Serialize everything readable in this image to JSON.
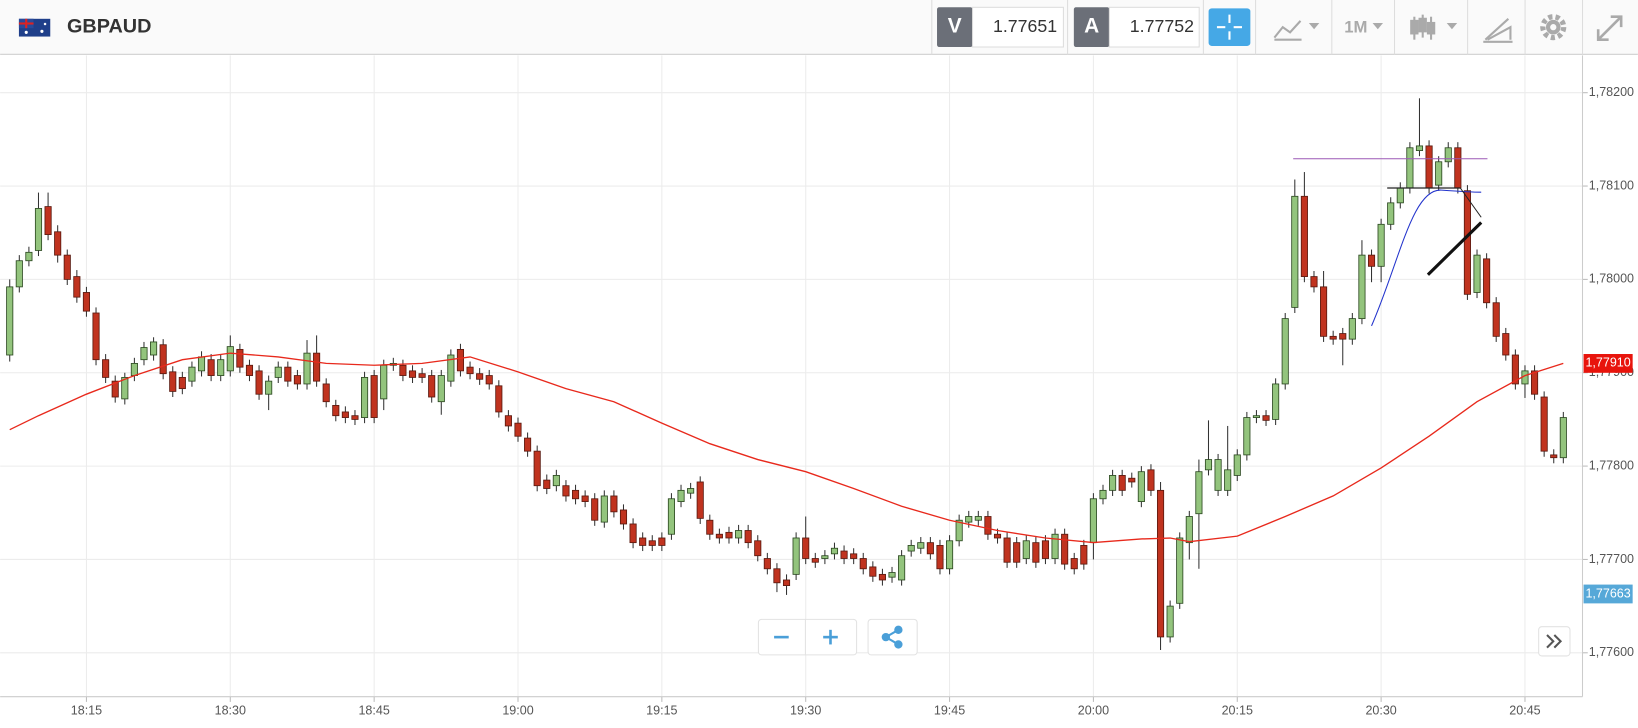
{
  "header": {
    "symbol": "GBPAUD",
    "sell": {
      "label": "V",
      "price": "1.77651"
    },
    "buy": {
      "label": "A",
      "price": "1.77752"
    },
    "timeframe": "1M"
  },
  "chart_data": {
    "type": "candlestick",
    "up_color": "#93c47d",
    "down_color": "#c0331f",
    "grid": true,
    "xlim": [
      "18:06",
      "20:51"
    ],
    "ylim": [
      1.77553,
      1.7824
    ],
    "xticks": [
      "18:15",
      "18:30",
      "18:45",
      "19:00",
      "19:15",
      "19:30",
      "19:45",
      "20:00",
      "20:15",
      "20:30",
      "20:45"
    ],
    "yticks": [
      {
        "value": 1.782,
        "label": "1,78200"
      },
      {
        "value": 1.781,
        "label": "1,78100"
      },
      {
        "value": 1.78,
        "label": "1,78000"
      },
      {
        "value": 1.779,
        "label": "1,77900"
      },
      {
        "value": 1.778,
        "label": "1,77800"
      },
      {
        "value": 1.777,
        "label": "1,77700"
      },
      {
        "value": 1.776,
        "label": "1,77600"
      }
    ],
    "price_labels": [
      {
        "value": 1.7791,
        "label": "1,77910",
        "color": "#e8140c"
      },
      {
        "value": 1.77663,
        "label": "1,77663",
        "color": "#56a8d8"
      }
    ],
    "x": [
      "18:07",
      "18:08",
      "18:09",
      "18:10",
      "18:11",
      "18:12",
      "18:13",
      "18:14",
      "18:15",
      "18:16",
      "18:17",
      "18:18",
      "18:19",
      "18:20",
      "18:21",
      "18:22",
      "18:23",
      "18:24",
      "18:25",
      "18:26",
      "18:27",
      "18:28",
      "18:29",
      "18:30",
      "18:31",
      "18:32",
      "18:33",
      "18:34",
      "18:35",
      "18:36",
      "18:37",
      "18:38",
      "18:39",
      "18:40",
      "18:41",
      "18:42",
      "18:43",
      "18:44",
      "18:45",
      "18:46",
      "18:47",
      "18:48",
      "18:49",
      "18:50",
      "18:51",
      "18:52",
      "18:53",
      "18:54",
      "18:55",
      "18:56",
      "18:57",
      "18:58",
      "18:59",
      "19:00",
      "19:01",
      "19:02",
      "19:03",
      "19:04",
      "19:05",
      "19:06",
      "19:07",
      "19:08",
      "19:09",
      "19:10",
      "19:11",
      "19:12",
      "19:13",
      "19:14",
      "19:15",
      "19:16",
      "19:17",
      "19:18",
      "19:19",
      "19:20",
      "19:21",
      "19:22",
      "19:23",
      "19:24",
      "19:25",
      "19:26",
      "19:27",
      "19:28",
      "19:29",
      "19:30",
      "19:31",
      "19:32",
      "19:33",
      "19:34",
      "19:35",
      "19:36",
      "19:37",
      "19:38",
      "19:39",
      "19:40",
      "19:41",
      "19:42",
      "19:43",
      "19:44",
      "19:45",
      "19:46",
      "19:47",
      "19:48",
      "19:49",
      "19:50",
      "19:51",
      "19:52",
      "19:53",
      "19:54",
      "19:55",
      "19:56",
      "19:57",
      "19:58",
      "19:59",
      "20:00",
      "20:01",
      "20:02",
      "20:03",
      "20:04",
      "20:05",
      "20:06",
      "20:07",
      "20:08",
      "20:09",
      "20:10",
      "20:11",
      "20:12",
      "20:13",
      "20:14",
      "20:15",
      "20:16",
      "20:17",
      "20:18",
      "20:19",
      "20:20",
      "20:21",
      "20:22",
      "20:23",
      "20:24",
      "20:25",
      "20:26",
      "20:27",
      "20:28",
      "20:29",
      "20:30",
      "20:31",
      "20:32",
      "20:33",
      "20:34",
      "20:35",
      "20:36",
      "20:37",
      "20:38",
      "20:39",
      "20:40",
      "20:41",
      "20:42",
      "20:43",
      "20:44",
      "20:45",
      "20:46",
      "20:47",
      "20:48",
      "20:49"
    ],
    "open": [
      1.77919,
      1.77992,
      1.7802,
      1.78031,
      1.78078,
      1.78051,
      1.78026,
      1.78003,
      1.77986,
      1.77964,
      1.77914,
      1.77891,
      1.77872,
      1.77897,
      1.77914,
      1.77919,
      1.7793,
      1.77901,
      1.77895,
      1.77891,
      1.77902,
      1.77914,
      1.77897,
      1.77902,
      1.77925,
      1.77908,
      1.77902,
      1.77877,
      1.77895,
      1.77906,
      1.77897,
      1.77888,
      1.77921,
      1.77888,
      1.77865,
      1.77858,
      1.77854,
      1.77852,
      1.77897,
      1.77872,
      1.77908,
      1.77908,
      1.77902,
      1.77899,
      1.77897,
      1.77869,
      1.77891,
      1.77925,
      1.77906,
      1.77899,
      1.77897,
      1.77886,
      1.77854,
      1.77846,
      1.7783,
      1.77816,
      1.77785,
      1.77779,
      1.77779,
      1.77774,
      1.77768,
      1.77765,
      1.7774,
      1.77768,
      1.77753,
      1.77738,
      1.77723,
      1.7772,
      1.77723,
      1.77727,
      1.77762,
      1.77771,
      1.77783,
      1.77742,
      1.77727,
      1.77729,
      1.77723,
      1.77731,
      1.7772,
      1.77701,
      1.7769,
      1.77678,
      1.77684,
      1.77723,
      1.77701,
      1.77701,
      1.77706,
      1.77709,
      1.77706,
      1.77701,
      1.77692,
      1.77684,
      1.77681,
      1.77678,
      1.77709,
      1.77712,
      1.77718,
      1.77715,
      1.7769,
      1.7772,
      1.7774,
      1.77742,
      1.77746,
      1.77727,
      1.77723,
      1.77718,
      1.77701,
      1.77718,
      1.7772,
      1.77701,
      1.77727,
      1.77701,
      1.77715,
      1.77718,
      1.77765,
      1.77774,
      1.7779,
      1.77787,
      1.77762,
      1.77796,
      1.77774,
      1.77617,
      1.77653,
      1.77718,
      1.77749,
      1.77796,
      1.77774,
      1.77774,
      1.7779,
      1.77812,
      1.77852,
      1.77854,
      1.7785,
      1.77888,
      1.7797,
      1.78089,
      1.78003,
      1.77992,
      1.77939,
      1.77942,
      1.77936,
      1.77958,
      1.78026,
      1.78014,
      1.78059,
      1.78082,
      1.78098,
      1.78138,
      1.78143,
      1.78101,
      1.78126,
      1.78141,
      1.78095,
      1.77986,
      1.78022,
      1.77975,
      1.77942,
      1.77919,
      1.77888,
      1.77902,
      1.77874,
      1.77812,
      1.77809
    ],
    "high": [
      1.78,
      1.78026,
      1.78035,
      1.78093,
      1.78093,
      1.78058,
      1.78032,
      1.7801,
      1.77992,
      1.7797,
      1.7792,
      1.77897,
      1.779,
      1.77916,
      1.77933,
      1.77938,
      1.77936,
      1.77907,
      1.77901,
      1.77912,
      1.77923,
      1.7792,
      1.7792,
      1.7794,
      1.77931,
      1.77914,
      1.77908,
      1.77897,
      1.77912,
      1.77912,
      1.77903,
      1.77935,
      1.7794,
      1.77894,
      1.77871,
      1.77864,
      1.7786,
      1.77901,
      1.77903,
      1.77914,
      1.77916,
      1.77914,
      1.77908,
      1.77905,
      1.77903,
      1.77903,
      1.77925,
      1.77931,
      1.77912,
      1.77905,
      1.77903,
      1.77892,
      1.7786,
      1.77852,
      1.77836,
      1.77822,
      1.77791,
      1.77796,
      1.77785,
      1.7778,
      1.77774,
      1.77771,
      1.77774,
      1.77774,
      1.77759,
      1.77744,
      1.77729,
      1.77726,
      1.77729,
      1.77771,
      1.7778,
      1.77782,
      1.77789,
      1.77748,
      1.77733,
      1.77735,
      1.77737,
      1.77737,
      1.77726,
      1.77707,
      1.77696,
      1.77684,
      1.77729,
      1.77746,
      1.77707,
      1.7771,
      1.77718,
      1.77715,
      1.77712,
      1.77707,
      1.77698,
      1.7769,
      1.77692,
      1.7771,
      1.77721,
      1.77724,
      1.77724,
      1.77721,
      1.77726,
      1.77748,
      1.77752,
      1.77752,
      1.77752,
      1.77733,
      1.77729,
      1.77724,
      1.77726,
      1.77724,
      1.77726,
      1.77733,
      1.77733,
      1.77707,
      1.77721,
      1.77771,
      1.7778,
      1.77796,
      1.77796,
      1.77793,
      1.778,
      1.77802,
      1.77783,
      1.77656,
      1.77729,
      1.77752,
      1.77807,
      1.77849,
      1.77813,
      1.77843,
      1.77818,
      1.77858,
      1.7786,
      1.7786,
      1.77894,
      1.77964,
      1.78107,
      1.78115,
      1.78009,
      1.78009,
      1.77945,
      1.77948,
      1.77964,
      1.78042,
      1.78032,
      1.78065,
      1.78088,
      1.78104,
      1.78147,
      1.78194,
      1.78149,
      1.78132,
      1.78147,
      1.78147,
      1.78101,
      1.78032,
      1.78028,
      1.77981,
      1.77948,
      1.77925,
      1.77908,
      1.77908,
      1.7788,
      1.77818,
      1.77858
    ],
    "low": [
      1.77912,
      1.77986,
      1.78014,
      1.78025,
      1.78042,
      1.78018,
      1.77994,
      1.77975,
      1.7796,
      1.77908,
      1.77889,
      1.77868,
      1.77866,
      1.77891,
      1.77908,
      1.77913,
      1.77893,
      1.77874,
      1.77877,
      1.77885,
      1.77896,
      1.77891,
      1.77891,
      1.77896,
      1.779,
      1.77891,
      1.77871,
      1.7786,
      1.77889,
      1.77885,
      1.77882,
      1.77882,
      1.77885,
      1.77863,
      1.77848,
      1.77846,
      1.77844,
      1.77846,
      1.77846,
      1.7786,
      1.77902,
      1.77891,
      1.77889,
      1.77889,
      1.77868,
      1.77855,
      1.77885,
      1.77896,
      1.77893,
      1.77887,
      1.77882,
      1.77852,
      1.77837,
      1.77826,
      1.7781,
      1.77773,
      1.7777,
      1.77773,
      1.77762,
      1.77759,
      1.77756,
      1.77736,
      1.77734,
      1.77745,
      1.77732,
      1.77712,
      1.77709,
      1.77709,
      1.77709,
      1.77721,
      1.77756,
      1.77765,
      1.77738,
      1.77721,
      1.77717,
      1.77717,
      1.77717,
      1.77712,
      1.77698,
      1.77684,
      1.77665,
      1.77662,
      1.77678,
      1.77695,
      1.77691,
      1.77695,
      1.777,
      1.77695,
      1.77695,
      1.77684,
      1.77676,
      1.77672,
      1.77675,
      1.77672,
      1.77703,
      1.77706,
      1.777,
      1.77684,
      1.77684,
      1.77714,
      1.77734,
      1.77736,
      1.77721,
      1.77717,
      1.77691,
      1.77691,
      1.77695,
      1.77691,
      1.77695,
      1.77695,
      1.77689,
      1.77684,
      1.77689,
      1.777,
      1.77759,
      1.77768,
      1.77768,
      1.77777,
      1.77756,
      1.77768,
      1.77603,
      1.77611,
      1.77647,
      1.777,
      1.7769,
      1.7779,
      1.77768,
      1.77768,
      1.77784,
      1.77806,
      1.77846,
      1.77843,
      1.77844,
      1.77882,
      1.77964,
      1.77997,
      1.77986,
      1.77933,
      1.7793,
      1.77908,
      1.7793,
      1.77952,
      1.77997,
      1.77997,
      1.78053,
      1.78076,
      1.78092,
      1.78132,
      1.78092,
      1.78095,
      1.7812,
      1.78092,
      1.77978,
      1.7798,
      1.77969,
      1.77933,
      1.77913,
      1.77882,
      1.77873,
      1.77871,
      1.7781,
      1.77803,
      1.77803
    ],
    "close": [
      1.77992,
      1.7802,
      1.78029,
      1.78076,
      1.78048,
      1.78026,
      1.78,
      1.77981,
      1.77966,
      1.77914,
      1.77895,
      1.77874,
      1.77895,
      1.7791,
      1.77927,
      1.77933,
      1.77899,
      1.7788,
      1.77883,
      1.77906,
      1.77917,
      1.77897,
      1.77914,
      1.77928,
      1.77906,
      1.77897,
      1.77877,
      1.77891,
      1.77906,
      1.77891,
      1.77888,
      1.77921,
      1.77891,
      1.77869,
      1.77854,
      1.77852,
      1.7785,
      1.77895,
      1.77852,
      1.77908,
      1.7791,
      1.77897,
      1.77895,
      1.77895,
      1.77874,
      1.77897,
      1.77919,
      1.77902,
      1.77899,
      1.77893,
      1.77888,
      1.77858,
      1.77843,
      1.77832,
      1.77816,
      1.77779,
      1.77776,
      1.7779,
      1.77768,
      1.77765,
      1.77762,
      1.77742,
      1.77768,
      1.77751,
      1.77738,
      1.77718,
      1.77715,
      1.77715,
      1.77715,
      1.77765,
      1.77774,
      1.77776,
      1.77744,
      1.77727,
      1.77723,
      1.77723,
      1.77731,
      1.77718,
      1.77704,
      1.7769,
      1.77675,
      1.77672,
      1.77723,
      1.77701,
      1.77697,
      1.77704,
      1.77712,
      1.77701,
      1.77701,
      1.7769,
      1.77682,
      1.77678,
      1.77686,
      1.77704,
      1.77715,
      1.77718,
      1.77706,
      1.7769,
      1.7772,
      1.77742,
      1.77746,
      1.77746,
      1.77727,
      1.77723,
      1.77697,
      1.77697,
      1.7772,
      1.77697,
      1.77701,
      1.77727,
      1.77695,
      1.7769,
      1.77695,
      1.77765,
      1.77774,
      1.7779,
      1.77774,
      1.77783,
      1.77794,
      1.77774,
      1.77617,
      1.7765,
      1.77723,
      1.77746,
      1.77794,
      1.77807,
      1.77807,
      1.77796,
      1.77812,
      1.77852,
      1.77854,
      1.77849,
      1.77888,
      1.77958,
      1.78089,
      1.78003,
      1.77992,
      1.77939,
      1.77936,
      1.77936,
      1.77958,
      1.78026,
      1.78014,
      1.78059,
      1.78082,
      1.78098,
      1.78141,
      1.78143,
      1.78098,
      1.78126,
      1.78141,
      1.78098,
      1.77984,
      1.78026,
      1.77975,
      1.77939,
      1.77919,
      1.77888,
      1.77902,
      1.77877,
      1.77816,
      1.77809,
      1.77852
    ],
    "ma": {
      "color": "#e8291c",
      "x": [
        "18:07",
        "18:10",
        "18:15",
        "18:20",
        "18:25",
        "18:30",
        "18:35",
        "18:40",
        "18:45",
        "18:50",
        "18:55",
        "19:00",
        "19:05",
        "19:10",
        "19:15",
        "19:20",
        "19:25",
        "19:30",
        "19:35",
        "19:40",
        "19:45",
        "19:50",
        "19:55",
        "20:00",
        "20:05",
        "20:08",
        "20:10",
        "20:15",
        "20:20",
        "20:25",
        "20:30",
        "20:35",
        "20:40",
        "20:45",
        "20:49"
      ],
      "values": [
        1.77839,
        1.77854,
        1.77877,
        1.77897,
        1.77914,
        1.77921,
        1.77917,
        1.7791,
        1.77908,
        1.7791,
        1.77917,
        1.77901,
        1.77883,
        1.77869,
        1.77846,
        1.77824,
        1.77807,
        1.77794,
        1.77776,
        1.77757,
        1.77742,
        1.77731,
        1.77723,
        1.77718,
        1.77722,
        1.77723,
        1.77719,
        1.77725,
        1.77746,
        1.77768,
        1.77798,
        1.77832,
        1.77869,
        1.77897,
        1.7791
      ]
    }
  }
}
